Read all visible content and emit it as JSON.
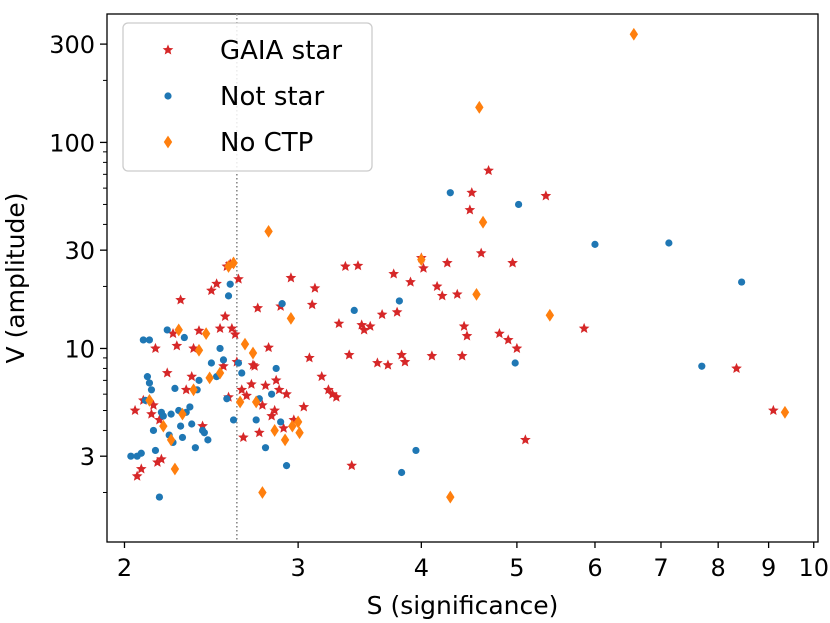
{
  "chart_data": {
    "type": "scatter",
    "xlabel": "S (significance)",
    "ylabel": "V (amplitude)",
    "x_scale": "log",
    "y_scale": "log",
    "xlim": [
      1.92,
      10.1
    ],
    "ylim": [
      1.15,
      420
    ],
    "x_ticks": [
      {
        "value": 2,
        "label": "2"
      },
      {
        "value": 3,
        "label": "3"
      },
      {
        "value": 4,
        "label": "4"
      },
      {
        "value": 5,
        "label": "5"
      },
      {
        "value": 6,
        "label": "6"
      },
      {
        "value": 7,
        "label": "7"
      },
      {
        "value": 8,
        "label": "8"
      },
      {
        "value": 9,
        "label": "9"
      },
      {
        "value": 10,
        "label": "10"
      }
    ],
    "y_ticks": [
      {
        "value": 3,
        "label": "3"
      },
      {
        "value": 10,
        "label": "10"
      },
      {
        "value": 30,
        "label": "30"
      },
      {
        "value": 100,
        "label": "100"
      },
      {
        "value": 300,
        "label": "300"
      }
    ],
    "y_minor_ticks": [
      2,
      4,
      5,
      6,
      7,
      8,
      9,
      20,
      40,
      50,
      60,
      70,
      80,
      90,
      200
    ],
    "vline": {
      "x": 2.6,
      "style": "dotted",
      "color": "#888888"
    },
    "grid": false,
    "legend_position": "top-left",
    "series": [
      {
        "name": "GAIA star",
        "marker": "star",
        "color": "#d62728",
        "points": [
          [
            2.05,
            5.0
          ],
          [
            2.08,
            2.6
          ],
          [
            2.06,
            2.4
          ],
          [
            2.09,
            5.6
          ],
          [
            2.13,
            4.8
          ],
          [
            2.14,
            5.3
          ],
          [
            2.15,
            10.0
          ],
          [
            2.16,
            2.8
          ],
          [
            2.18,
            2.9
          ],
          [
            2.17,
            4.5
          ],
          [
            2.21,
            7.6
          ],
          [
            2.24,
            11.8
          ],
          [
            2.26,
            10.3
          ],
          [
            2.28,
            17.2
          ],
          [
            2.31,
            6.3
          ],
          [
            2.34,
            7.3
          ],
          [
            2.35,
            10.0
          ],
          [
            2.38,
            12.2
          ],
          [
            2.4,
            4.2
          ],
          [
            2.45,
            19.1
          ],
          [
            2.48,
            20.6
          ],
          [
            2.5,
            12.5
          ],
          [
            2.52,
            8.2
          ],
          [
            2.53,
            14.3
          ],
          [
            2.54,
            25.0
          ],
          [
            2.55,
            5.8
          ],
          [
            2.56,
            25.7
          ],
          [
            2.57,
            12.5
          ],
          [
            2.59,
            11.7
          ],
          [
            2.6,
            8.6
          ],
          [
            2.61,
            21.7
          ],
          [
            2.63,
            6.3
          ],
          [
            2.64,
            3.7
          ],
          [
            2.66,
            5.9
          ],
          [
            2.69,
            6.7
          ],
          [
            2.7,
            8.3
          ],
          [
            2.71,
            8.2
          ],
          [
            2.73,
            15.7
          ],
          [
            2.74,
            3.9
          ],
          [
            2.76,
            5.3
          ],
          [
            2.78,
            6.6
          ],
          [
            2.8,
            10.1
          ],
          [
            2.82,
            4.7
          ],
          [
            2.84,
            5.0
          ],
          [
            2.85,
            7.0
          ],
          [
            2.87,
            6.3
          ],
          [
            2.88,
            16.0
          ],
          [
            2.9,
            4.1
          ],
          [
            2.92,
            6.0
          ],
          [
            2.95,
            22.0
          ],
          [
            2.97,
            4.5
          ],
          [
            3.04,
            5.2
          ],
          [
            3.08,
            9.0
          ],
          [
            3.1,
            16.3
          ],
          [
            3.12,
            19.6
          ],
          [
            3.17,
            7.3
          ],
          [
            3.22,
            6.3
          ],
          [
            3.25,
            6.0
          ],
          [
            3.28,
            5.8
          ],
          [
            3.3,
            13.2
          ],
          [
            3.35,
            25.0
          ],
          [
            3.38,
            9.3
          ],
          [
            3.4,
            2.7
          ],
          [
            3.45,
            25.2
          ],
          [
            3.48,
            13.0
          ],
          [
            3.5,
            12.3
          ],
          [
            3.55,
            12.8
          ],
          [
            3.61,
            8.5
          ],
          [
            3.65,
            14.6
          ],
          [
            3.7,
            8.3
          ],
          [
            3.75,
            23.0
          ],
          [
            3.78,
            15.0
          ],
          [
            3.82,
            9.3
          ],
          [
            3.85,
            8.6
          ],
          [
            3.9,
            21.0
          ],
          [
            4.0,
            27.5
          ],
          [
            4.02,
            24.5
          ],
          [
            4.1,
            9.2
          ],
          [
            4.15,
            20.0
          ],
          [
            4.2,
            18.0
          ],
          [
            4.25,
            26.0
          ],
          [
            4.35,
            18.3
          ],
          [
            4.4,
            9.2
          ],
          [
            4.42,
            12.8
          ],
          [
            4.45,
            11.5
          ],
          [
            4.48,
            47.0
          ],
          [
            4.5,
            57.0
          ],
          [
            4.6,
            29.0
          ],
          [
            4.68,
            73.0
          ],
          [
            4.8,
            11.8
          ],
          [
            4.9,
            11.0
          ],
          [
            4.95,
            26.0
          ],
          [
            5.0,
            10.0
          ],
          [
            5.1,
            3.6
          ],
          [
            5.35,
            55.0
          ],
          [
            5.85,
            12.5
          ],
          [
            8.35,
            8.0
          ],
          [
            9.1,
            5.0
          ]
        ]
      },
      {
        "name": "Not star",
        "marker": "circle",
        "color": "#1f77b4",
        "points": [
          [
            2.03,
            3.0
          ],
          [
            2.06,
            3.0
          ],
          [
            2.08,
            3.1
          ],
          [
            2.09,
            11.0
          ],
          [
            2.1,
            5.6
          ],
          [
            2.11,
            7.3
          ],
          [
            2.12,
            6.8
          ],
          [
            2.12,
            11.0
          ],
          [
            2.13,
            6.3
          ],
          [
            2.14,
            4.0
          ],
          [
            2.15,
            3.2
          ],
          [
            2.17,
            1.9
          ],
          [
            2.18,
            4.9
          ],
          [
            2.19,
            4.7
          ],
          [
            2.21,
            12.3
          ],
          [
            2.22,
            3.8
          ],
          [
            2.23,
            4.8
          ],
          [
            2.24,
            3.5
          ],
          [
            2.25,
            6.4
          ],
          [
            2.27,
            5.0
          ],
          [
            2.28,
            4.2
          ],
          [
            2.29,
            3.7
          ],
          [
            2.3,
            11.3
          ],
          [
            2.31,
            4.9
          ],
          [
            2.33,
            5.2
          ],
          [
            2.34,
            4.3
          ],
          [
            2.36,
            3.3
          ],
          [
            2.37,
            6.3
          ],
          [
            2.38,
            7.0
          ],
          [
            2.4,
            4.0
          ],
          [
            2.41,
            3.9
          ],
          [
            2.43,
            3.6
          ],
          [
            2.45,
            8.5
          ],
          [
            2.48,
            7.3
          ],
          [
            2.5,
            10.0
          ],
          [
            2.52,
            8.8
          ],
          [
            2.54,
            5.7
          ],
          [
            2.55,
            18.0
          ],
          [
            2.56,
            20.5
          ],
          [
            2.58,
            4.5
          ],
          [
            2.61,
            8.5
          ],
          [
            2.63,
            7.6
          ],
          [
            2.72,
            4.5
          ],
          [
            2.74,
            5.7
          ],
          [
            2.78,
            3.3
          ],
          [
            2.82,
            6.0
          ],
          [
            2.85,
            8.0
          ],
          [
            2.88,
            4.4
          ],
          [
            2.89,
            16.5
          ],
          [
            2.92,
            2.7
          ],
          [
            3.42,
            15.3
          ],
          [
            3.8,
            17.0
          ],
          [
            3.82,
            2.5
          ],
          [
            3.95,
            3.2
          ],
          [
            4.28,
            57.0
          ],
          [
            4.98,
            8.5
          ],
          [
            5.02,
            50.0
          ],
          [
            6.0,
            32.0
          ],
          [
            7.13,
            32.5
          ],
          [
            7.7,
            8.2
          ],
          [
            8.45,
            21.0
          ]
        ]
      },
      {
        "name": "No CTP",
        "marker": "diamond",
        "color": "#ff7f0e",
        "points": [
          [
            2.12,
            5.6
          ],
          [
            2.19,
            4.2
          ],
          [
            2.23,
            3.6
          ],
          [
            2.25,
            2.6
          ],
          [
            2.27,
            12.3
          ],
          [
            2.29,
            4.8
          ],
          [
            2.35,
            6.3
          ],
          [
            2.38,
            9.8
          ],
          [
            2.42,
            11.8
          ],
          [
            2.44,
            7.2
          ],
          [
            2.5,
            7.6
          ],
          [
            2.55,
            25.0
          ],
          [
            2.58,
            26.0
          ],
          [
            2.62,
            5.5
          ],
          [
            2.65,
            10.5
          ],
          [
            2.7,
            9.5
          ],
          [
            2.72,
            5.5
          ],
          [
            2.76,
            2.0
          ],
          [
            2.8,
            37.0
          ],
          [
            2.84,
            4.0
          ],
          [
            2.91,
            3.6
          ],
          [
            2.95,
            14.0
          ],
          [
            2.96,
            4.2
          ],
          [
            3.0,
            4.4
          ],
          [
            3.01,
            3.9
          ],
          [
            4.28,
            1.9
          ],
          [
            4.0,
            27.0
          ],
          [
            4.55,
            18.3
          ],
          [
            4.58,
            148.0
          ],
          [
            4.62,
            41.0
          ],
          [
            5.4,
            14.5
          ],
          [
            6.57,
            335.0
          ],
          [
            9.35,
            4.9
          ]
        ]
      }
    ]
  }
}
